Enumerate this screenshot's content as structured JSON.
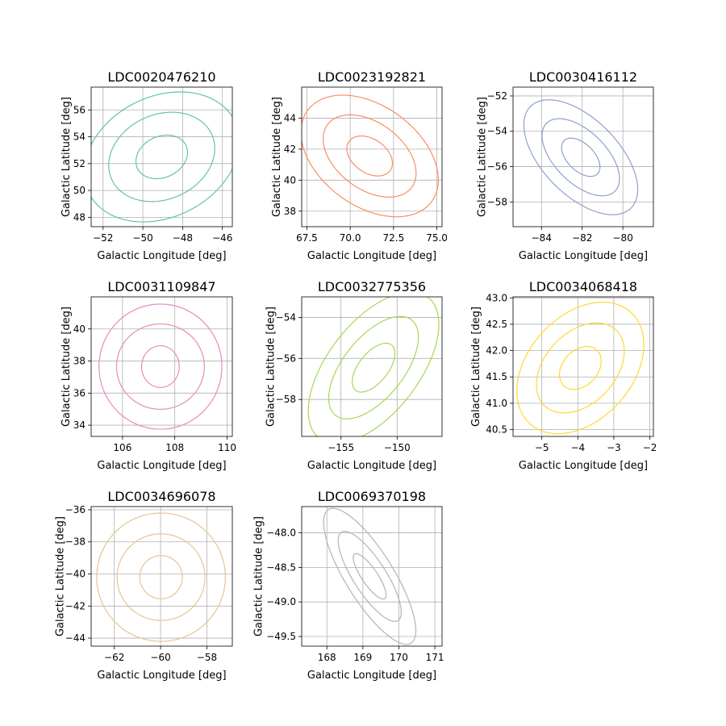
{
  "chart_data": [
    {
      "type": "contour",
      "title": "LDC0020476210",
      "xlabel": "Galactic Longitude [deg]",
      "ylabel": "Galactic Latitude [deg]",
      "xlim": [
        -52.6,
        -45.5
      ],
      "ylim": [
        47.3,
        57.7
      ],
      "xticks": [
        -52,
        -50,
        -48,
        -46
      ],
      "xtick_labels": [
        "−52",
        "−50",
        "−48",
        "−46"
      ],
      "yticks": [
        48,
        50,
        52,
        54,
        56
      ],
      "ytick_labels": [
        "48",
        "50",
        "52",
        "54",
        "56"
      ],
      "grid": true,
      "color": "#66c2a5",
      "center": [
        -49.05,
        52.5
      ],
      "contours": [
        {
          "level": 1,
          "a": [
            0.99,
            1.28
          ],
          "b": [
            -0.84,
            1.0
          ]
        },
        {
          "level": 2,
          "a": [
            2.03,
            2.6
          ],
          "b": [
            -1.73,
            2.08
          ]
        },
        {
          "level": 3,
          "a": [
            3.01,
            3.88
          ],
          "b": [
            -2.48,
            2.9
          ]
        }
      ]
    },
    {
      "type": "contour",
      "title": "LDC0023192821",
      "xlabel": "Galactic Longitude [deg]",
      "ylabel": "Galactic Latitude [deg]",
      "xlim": [
        67.2,
        75.3
      ],
      "ylim": [
        37.0,
        46.0
      ],
      "xticks": [
        67.5,
        70.0,
        72.5,
        75.0
      ],
      "xtick_labels": [
        "67.5",
        "70.0",
        "72.5",
        "75.0"
      ],
      "yticks": [
        38,
        40,
        42,
        44
      ],
      "ytick_labels": [
        "38",
        "40",
        "42",
        "44"
      ],
      "grid": true,
      "color": "#fc8d62",
      "center": [
        71.12,
        41.56
      ],
      "contours": [
        {
          "level": 1,
          "a": [
            1.08,
            -1.07
          ],
          "b": [
            0.75,
            0.72
          ]
        },
        {
          "level": 2,
          "a": [
            2.25,
            -2.24
          ],
          "b": [
            1.46,
            1.42
          ]
        },
        {
          "level": 3,
          "a": [
            3.3,
            -3.28
          ],
          "b": [
            2.2,
            2.15
          ]
        }
      ]
    },
    {
      "type": "contour",
      "title": "LDC0030416112",
      "xlabel": "Galactic Longitude [deg]",
      "ylabel": "Galactic Latitude [deg]",
      "xlim": [
        -85.4,
        -78.5
      ],
      "ylim": [
        -59.4,
        -51.5
      ],
      "xticks": [
        -84,
        -82,
        -80
      ],
      "xtick_labels": [
        "−84",
        "−82",
        "−80"
      ],
      "yticks": [
        -58,
        -56,
        -54,
        -52
      ],
      "ytick_labels": [
        "−58",
        "−56",
        "−54",
        "−52"
      ],
      "grid": true,
      "color": "#8da0cb",
      "center": [
        -82.07,
        -55.47
      ],
      "contours": [
        {
          "level": 1,
          "a": [
            0.8,
            -0.96
          ],
          "b": [
            0.5,
            0.5
          ]
        },
        {
          "level": 2,
          "a": [
            1.65,
            -1.96
          ],
          "b": [
            0.95,
            0.96
          ]
        },
        {
          "level": 3,
          "a": [
            2.4,
            -2.95
          ],
          "b": [
            1.44,
            1.37
          ]
        }
      ]
    },
    {
      "type": "contour",
      "title": "LDC0031109847",
      "xlabel": "Galactic Longitude [deg]",
      "ylabel": "Galactic Latitude [deg]",
      "xlim": [
        104.8,
        110.2
      ],
      "ylim": [
        33.3,
        42.0
      ],
      "xticks": [
        106,
        108,
        110
      ],
      "xtick_labels": [
        "106",
        "108",
        "110"
      ],
      "yticks": [
        34,
        36,
        38,
        40
      ],
      "ytick_labels": [
        "34",
        "36",
        "38",
        "40"
      ],
      "grid": true,
      "color": "#e78ac3",
      "center": [
        107.45,
        37.65
      ],
      "contours": [
        {
          "level": 1,
          "a": [
            0.72,
            0.0
          ],
          "b": [
            0.0,
            1.3
          ]
        },
        {
          "level": 2,
          "a": [
            1.68,
            0.0
          ],
          "b": [
            0.0,
            2.66
          ]
        },
        {
          "level": 3,
          "a": [
            2.35,
            0.0
          ],
          "b": [
            0.0,
            3.9
          ]
        }
      ]
    },
    {
      "type": "contour",
      "title": "LDC0032775356",
      "xlabel": "Galactic Longitude [deg]",
      "ylabel": "Galactic Latitude [deg]",
      "xlim": [
        -158.5,
        -146.0
      ],
      "ylim": [
        -59.8,
        -53.0
      ],
      "xticks": [
        -155,
        -150
      ],
      "xtick_labels": [
        "−155",
        "−150"
      ],
      "yticks": [
        -58,
        -56,
        -54
      ],
      "ytick_labels": [
        "−58",
        "−56",
        "−54"
      ],
      "grid": true,
      "color": "#a6d854",
      "center": [
        -152.1,
        -56.45
      ],
      "contours": [
        {
          "level": 1,
          "a": [
            1.7,
            1.05
          ],
          "b": [
            -0.85,
            0.56
          ]
        },
        {
          "level": 2,
          "a": [
            3.6,
            2.21
          ],
          "b": [
            -1.73,
            1.16
          ]
        },
        {
          "level": 3,
          "a": [
            5.2,
            3.24
          ],
          "b": [
            -2.6,
            1.76
          ]
        }
      ]
    },
    {
      "type": "contour",
      "title": "LDC0034068418",
      "xlabel": "Galactic Longitude [deg]",
      "ylabel": "Galactic Latitude [deg]",
      "xlim": [
        -5.8,
        -1.9
      ],
      "ylim": [
        40.37,
        43.02
      ],
      "xticks": [
        -5,
        -4,
        -3,
        -2
      ],
      "xtick_labels": [
        "−5",
        "−4",
        "−3",
        "−2"
      ],
      "yticks": [
        40.5,
        41.0,
        41.5,
        42.0,
        42.5,
        43.0
      ],
      "ytick_labels": [
        "40.5",
        "41.0",
        "41.5",
        "42.0",
        "42.5",
        "43.0"
      ],
      "grid": true,
      "color": "#ffd92f",
      "center": [
        -3.93,
        41.67
      ],
      "contours": [
        {
          "level": 1,
          "a": [
            0.47,
            0.33
          ],
          "b": [
            -0.34,
            0.24
          ]
        },
        {
          "level": 2,
          "a": [
            1.02,
            0.7
          ],
          "b": [
            -0.67,
            0.49
          ]
        },
        {
          "level": 3,
          "a": [
            1.46,
            1.02
          ],
          "b": [
            -0.99,
            0.72
          ]
        }
      ]
    },
    {
      "type": "contour",
      "title": "LDC0034696078",
      "xlabel": "Galactic Longitude [deg]",
      "ylabel": "Galactic Latitude [deg]",
      "xlim": [
        -63.0,
        -56.9
      ],
      "ylim": [
        -44.5,
        -35.8
      ],
      "xticks": [
        -62,
        -60,
        -58
      ],
      "xtick_labels": [
        "−62",
        "−60",
        "−58"
      ],
      "yticks": [
        -44,
        -42,
        -40,
        -38,
        -36
      ],
      "ytick_labels": [
        "−44",
        "−42",
        "−40",
        "−38",
        "−36"
      ],
      "grid": true,
      "color": "#e5c494",
      "center": [
        -59.98,
        -40.2
      ],
      "contours": [
        {
          "level": 1,
          "a": [
            0.92,
            0.0
          ],
          "b": [
            0.0,
            1.35
          ]
        },
        {
          "level": 2,
          "a": [
            1.9,
            0.0
          ],
          "b": [
            0.0,
            2.7
          ]
        },
        {
          "level": 3,
          "a": [
            2.78,
            0.0
          ],
          "b": [
            0.0,
            4.0
          ]
        }
      ]
    },
    {
      "type": "contour",
      "title": "LDC0069370198",
      "xlabel": "Galactic Longitude [deg]",
      "ylabel": "Galactic Latitude [deg]",
      "xlim": [
        167.3,
        171.2
      ],
      "ylim": [
        -49.64,
        -47.62
      ],
      "xticks": [
        168,
        169,
        170,
        171
      ],
      "xtick_labels": [
        "168",
        "169",
        "170",
        "171"
      ],
      "yticks": [
        -49.5,
        -49.0,
        -48.5,
        -48.0
      ],
      "ytick_labels": [
        "−49.5",
        "−49.0",
        "−48.5",
        "−48.0"
      ],
      "grid": true,
      "color": "#b3b3b3",
      "center": [
        169.19,
        -48.63
      ],
      "contours": [
        {
          "level": 1,
          "a": [
            0.44,
            -0.31
          ],
          "b": [
            0.12,
            0.11
          ]
        },
        {
          "level": 2,
          "a": [
            0.84,
            -0.61
          ],
          "b": [
            0.25,
            0.23
          ]
        },
        {
          "level": 3,
          "a": [
            1.23,
            -0.92
          ],
          "b": [
            0.36,
            0.35
          ]
        }
      ]
    }
  ]
}
